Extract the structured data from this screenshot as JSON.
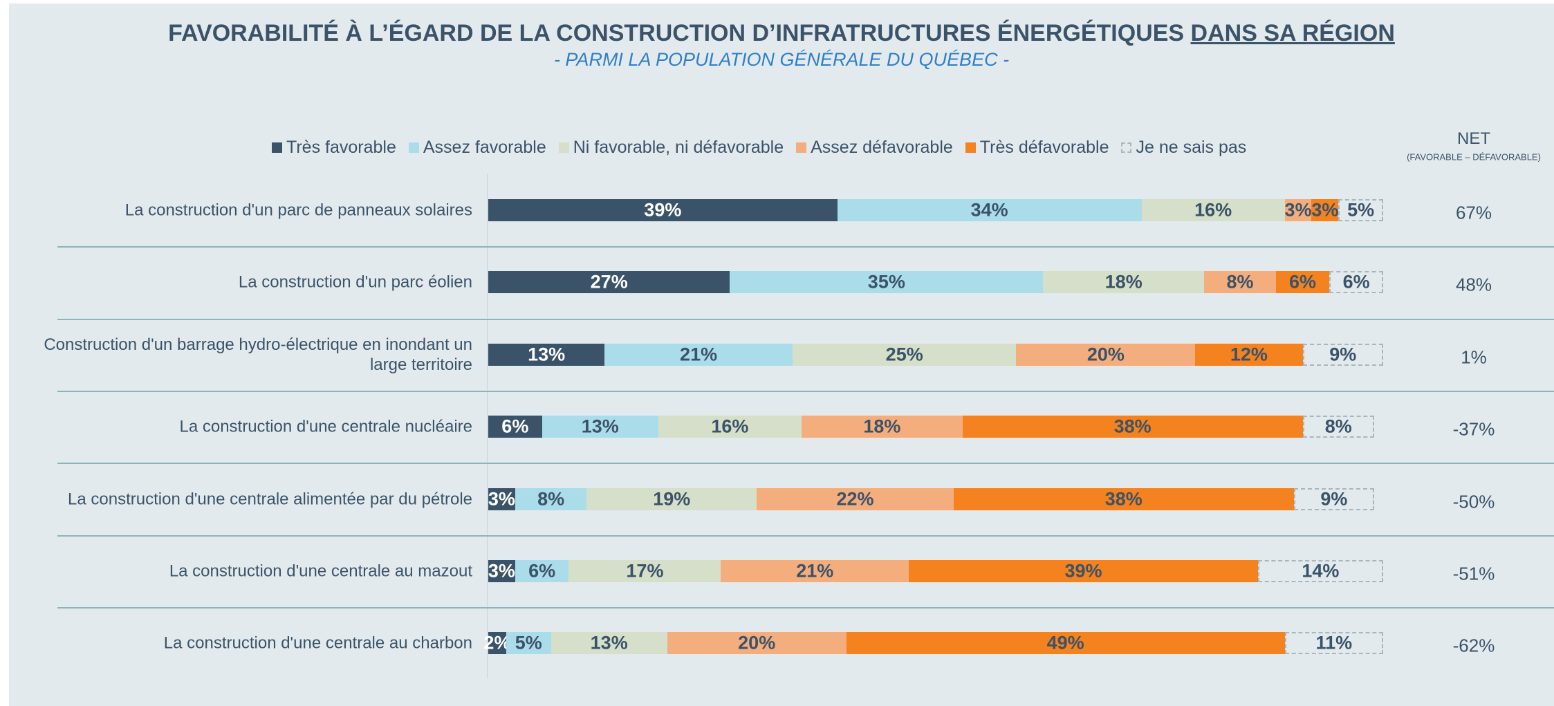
{
  "chart_data": {
    "type": "stacked-bar-horizontal",
    "title": "FAVORABILITÉ À L’ÉGARD DE LA CONSTRUCTION D’INFRATRUCTURES ÉNERGÉTIQUES",
    "title_underlined": "DANS SA RÉGION",
    "subtitle": "- PARMI LA POPULATION GÉNÉRALE DU QUÉBEC -",
    "categories": [
      "La construction d'un parc de panneaux solaires",
      "La construction d'un parc éolien",
      "Construction d'un barrage hydro-électrique en inondant un large territoire",
      "La construction d'une centrale nucléaire",
      "La construction d'une centrale alimentée par du pétrole",
      "La construction d'une centrale au mazout",
      "La construction d'une centrale au charbon"
    ],
    "series": [
      {
        "name": "Très favorable",
        "color": "#3b5368",
        "text_color": "#ffffff",
        "values": [
          39,
          27,
          13,
          6,
          3,
          3,
          2
        ],
        "value_labels": [
          "39%",
          "27%",
          "13%",
          "6%",
          "3%",
          "3%",
          "2%"
        ]
      },
      {
        "name": "Assez favorable",
        "color": "#abdcea",
        "text_color": "#3b5368",
        "values": [
          34,
          35,
          21,
          13,
          8,
          6,
          5
        ],
        "value_labels": [
          "34%",
          "35%",
          "21%",
          "13%",
          "8%",
          "6%",
          "5%"
        ]
      },
      {
        "name": "Ni favorable, ni défavorable",
        "color": "#d6dfca",
        "text_color": "#3b5368",
        "values": [
          16,
          18,
          25,
          16,
          19,
          17,
          13
        ],
        "value_labels": [
          "16%",
          "18%",
          "25%",
          "16%",
          "19%",
          "17%",
          "13%"
        ]
      },
      {
        "name": "Assez défavorable",
        "color": "#f4ae7e",
        "text_color": "#3b5368",
        "values": [
          3,
          8,
          20,
          18,
          22,
          21,
          20
        ],
        "value_labels": [
          "3%",
          "8%",
          "20%",
          "18%",
          "22%",
          "21%",
          "20%"
        ]
      },
      {
        "name": "Très défavorable",
        "color": "#f4821f",
        "text_color": "#3b5368",
        "values": [
          3,
          6,
          12,
          38,
          38,
          39,
          49
        ],
        "value_labels": [
          "3%",
          "6%",
          "12%",
          "38%",
          "38%",
          "39%",
          "49%"
        ]
      },
      {
        "name": "Je ne sais pas",
        "color": "none",
        "text_color": "#3b5368",
        "dashed": true,
        "values": [
          5,
          6,
          9,
          8,
          9,
          14,
          11
        ],
        "value_labels": [
          "5%",
          "6%",
          "9%",
          "8%",
          "9%",
          "14%",
          "11%"
        ]
      }
    ],
    "net": {
      "title": "NET",
      "subtitle": "(FAVORABLE – DÉFAVORABLE)",
      "values": [
        67,
        48,
        1,
        -37,
        -50,
        -51,
        -62
      ],
      "value_labels": [
        "67%",
        "48%",
        "1%",
        "-37%",
        "-50%",
        "-51%",
        "-62%"
      ]
    }
  }
}
